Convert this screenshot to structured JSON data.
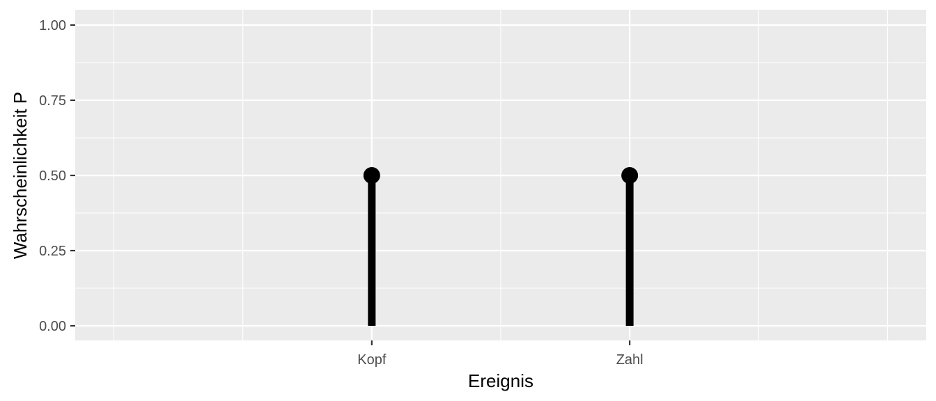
{
  "chart_data": {
    "type": "lollipop",
    "categories": [
      "Kopf",
      "Zahl"
    ],
    "values": [
      0.5,
      0.5
    ],
    "xlabel": "Ereignis",
    "ylabel": "Wahrscheinlichkeit P",
    "ylim": [
      0,
      1
    ],
    "yticks": [
      0.0,
      0.25,
      0.5,
      0.75,
      1.0
    ],
    "ytick_labels": [
      "0.00",
      "0.25",
      "0.50",
      "0.75",
      "1.00"
    ],
    "grid": true,
    "legend": "none",
    "colors": {
      "panel": "#ebebeb",
      "grid": "#ffffff",
      "mark": "#000000",
      "tick_text": "#4d4d4d",
      "tick": "#333333"
    }
  }
}
